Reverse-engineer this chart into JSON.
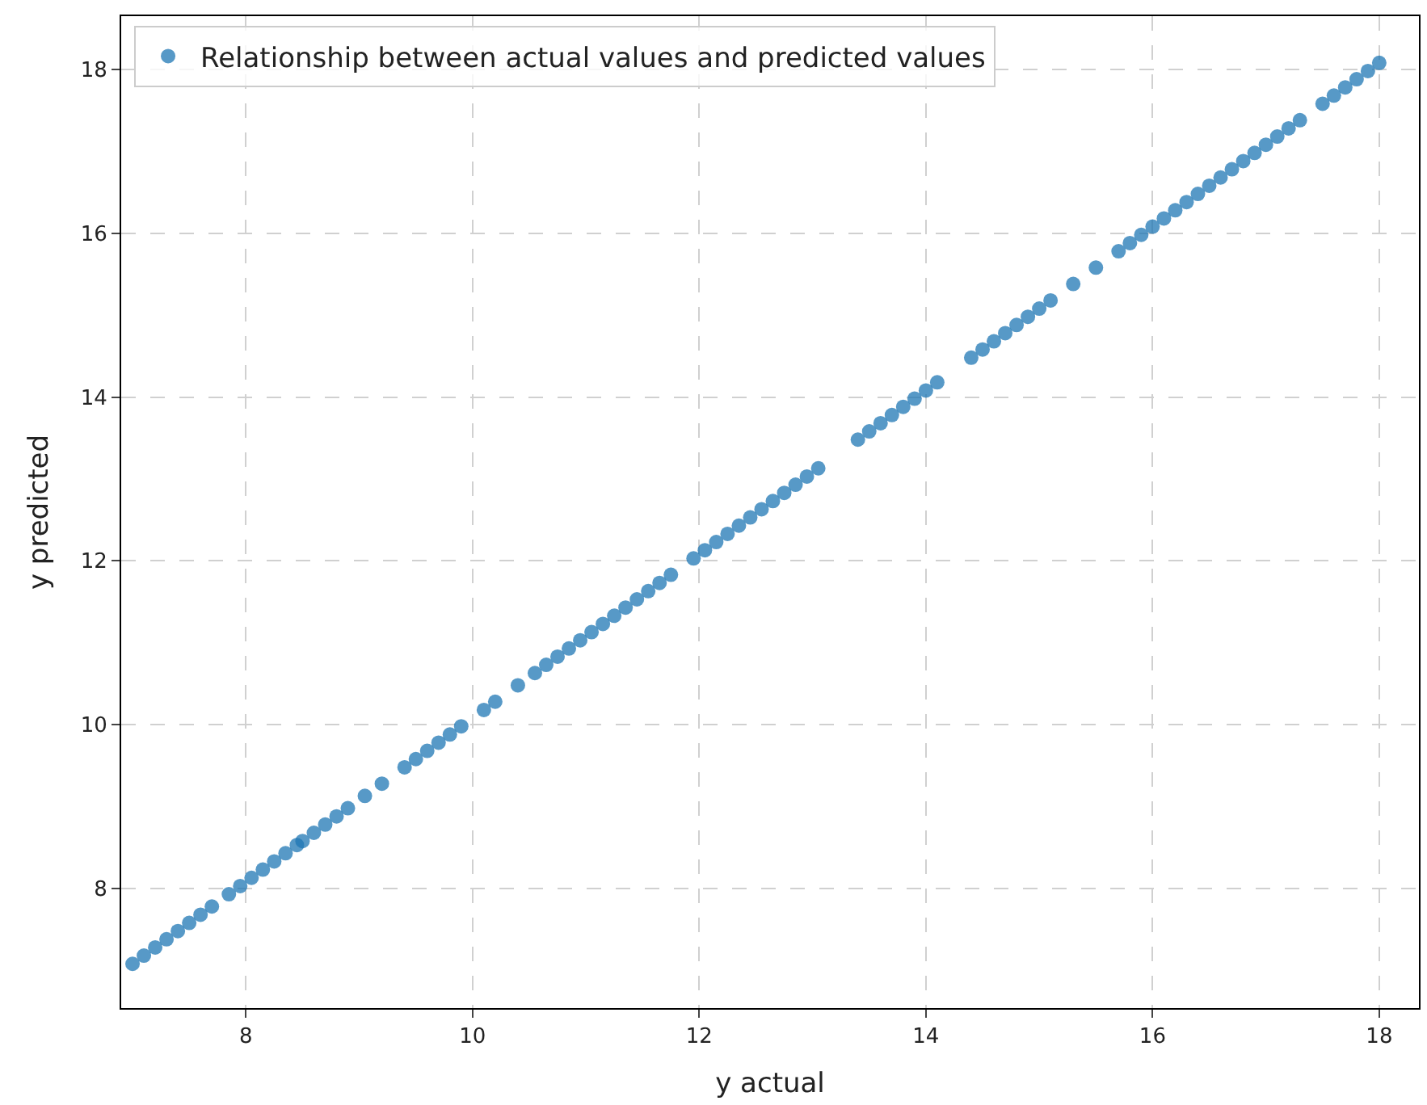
{
  "chart_data": {
    "type": "scatter",
    "xlabel": "y actual",
    "ylabel": "y predicted",
    "x": [
      7.0,
      7.1,
      7.2,
      7.3,
      7.4,
      7.5,
      7.6,
      7.7,
      7.85,
      7.95,
      8.05,
      8.15,
      8.25,
      8.35,
      8.45,
      8.5,
      8.6,
      8.7,
      8.8,
      8.9,
      9.05,
      9.2,
      9.4,
      9.5,
      9.6,
      9.7,
      9.8,
      9.9,
      10.1,
      10.2,
      10.4,
      10.55,
      10.65,
      10.75,
      10.85,
      10.95,
      11.05,
      11.15,
      11.25,
      11.35,
      11.45,
      11.55,
      11.65,
      11.75,
      11.95,
      12.05,
      12.15,
      12.25,
      12.35,
      12.45,
      12.55,
      12.65,
      12.75,
      12.85,
      12.95,
      13.05,
      13.4,
      13.5,
      13.6,
      13.7,
      13.8,
      13.9,
      14.0,
      14.1,
      14.4,
      14.5,
      14.6,
      14.7,
      14.8,
      14.9,
      15.0,
      15.1,
      15.3,
      15.5,
      15.7,
      15.8,
      15.9,
      16.0,
      16.1,
      16.2,
      16.3,
      16.4,
      16.5,
      16.6,
      16.7,
      16.8,
      16.9,
      17.0,
      17.1,
      17.2,
      17.3,
      17.5,
      17.6,
      17.7,
      17.8,
      17.9,
      18.0
    ],
    "series": [
      {
        "name": "Relationship between actual values and predicted values",
        "color": "#1f77b4",
        "values": [
          7.08,
          7.18,
          7.28,
          7.38,
          7.48,
          7.58,
          7.68,
          7.78,
          7.93,
          8.03,
          8.13,
          8.23,
          8.33,
          8.43,
          8.53,
          8.58,
          8.68,
          8.78,
          8.88,
          8.98,
          9.13,
          9.28,
          9.48,
          9.58,
          9.68,
          9.78,
          9.88,
          9.98,
          10.18,
          10.28,
          10.48,
          10.63,
          10.73,
          10.83,
          10.93,
          11.03,
          11.13,
          11.23,
          11.33,
          11.43,
          11.53,
          11.63,
          11.73,
          11.83,
          12.03,
          12.13,
          12.23,
          12.33,
          12.43,
          12.53,
          12.63,
          12.73,
          12.83,
          12.93,
          13.03,
          13.13,
          13.48,
          13.58,
          13.68,
          13.78,
          13.88,
          13.98,
          14.08,
          14.18,
          14.48,
          14.58,
          14.68,
          14.78,
          14.88,
          14.98,
          15.08,
          15.18,
          15.38,
          15.58,
          15.78,
          15.88,
          15.98,
          16.08,
          16.18,
          16.28,
          16.38,
          16.48,
          16.58,
          16.68,
          16.78,
          16.88,
          16.98,
          17.08,
          17.18,
          17.28,
          17.38,
          17.58,
          17.68,
          17.78,
          17.88,
          17.98,
          18.08
        ]
      }
    ],
    "xlim": [
      6.9,
      18.35
    ],
    "ylim": [
      6.54,
      18.65
    ],
    "xticks": [
      8,
      10,
      12,
      14,
      16,
      18
    ],
    "yticks": [
      8,
      10,
      12,
      14,
      16,
      18
    ],
    "grid": true,
    "legend": "top left",
    "marker": "circle"
  }
}
